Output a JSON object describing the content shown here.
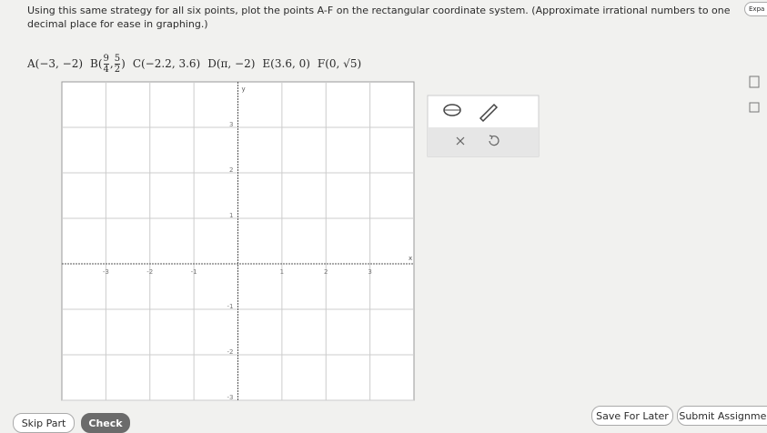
{
  "header": {
    "button": "Expa"
  },
  "question": {
    "instruction": "Using this same strategy for all six points, plot the points A-F on the rectangular coordinate system. (Approximate irrational numbers to one decimal place for ease in graphing.)",
    "points": [
      "A(−3, −2)",
      {
        "prefix": "B(",
        "x": {
          "num": "9",
          "den": "4"
        },
        "sep": ",",
        "y": {
          "num": "5",
          "den": "2"
        },
        "suffix": ")"
      },
      "C(−2.2, 3.6)",
      "D(π, −2)",
      "E(3.6, 0)",
      "F(0, √5)"
    ]
  },
  "graph": {
    "x_label": "x",
    "y_label": "y",
    "xlim": [
      -4,
      4
    ],
    "ylim": [
      -3,
      4
    ],
    "xticks": [
      -3,
      -2,
      -1,
      1,
      2,
      3
    ],
    "yticks": [
      -3,
      -2,
      -1,
      1,
      2,
      3
    ],
    "grid": true
  },
  "footer": {
    "skip": "Skip Part",
    "check": "Check",
    "save": "Save For Later",
    "submit": "Submit Assignment"
  }
}
